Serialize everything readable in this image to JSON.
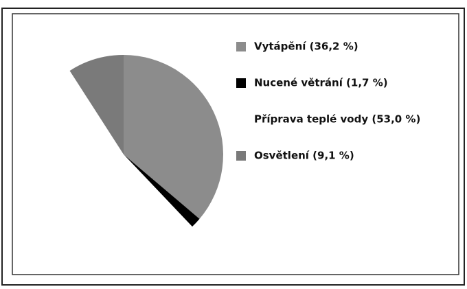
{
  "chart_data": {
    "type": "pie",
    "categories": [
      "Vytápění (36,2 %)",
      "Nucené větrání (1,7 %)",
      "Příprava teplé vody (53,0 %)",
      "Osvětlení (9,1 %)"
    ],
    "values": [
      36.2,
      1.7,
      53.0,
      9.1
    ],
    "colors": [
      "#8c8c8c",
      "#000000",
      "#ffffff",
      "#7a7a7a"
    ],
    "legend": "right"
  }
}
